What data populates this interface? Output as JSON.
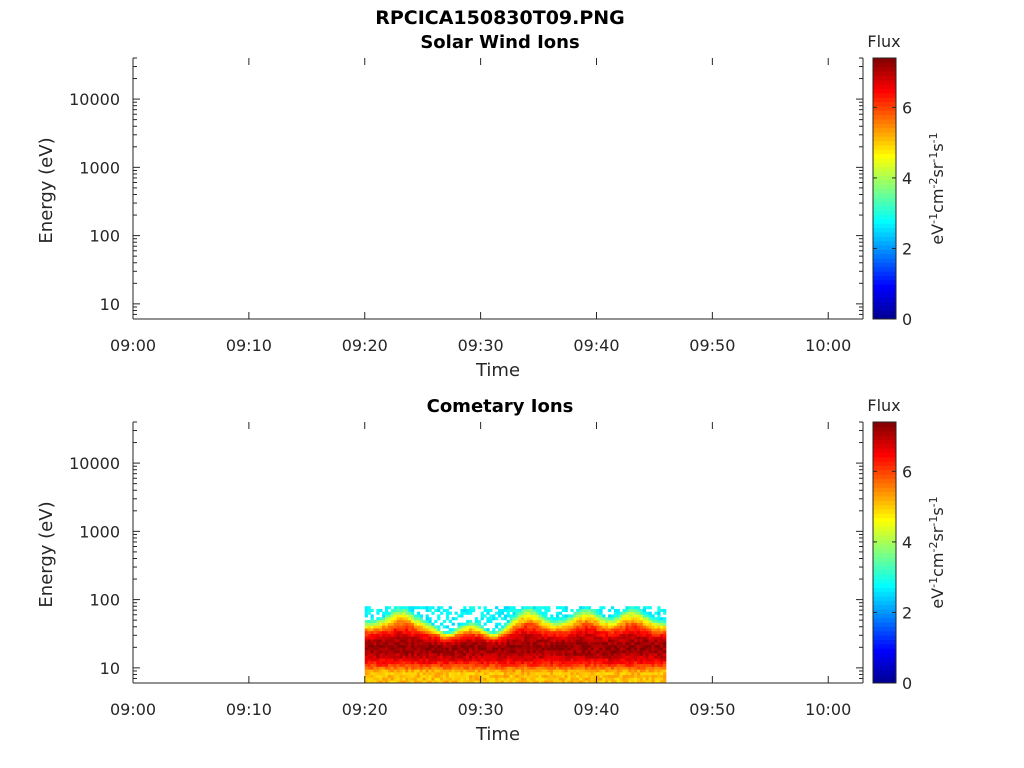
{
  "figure": {
    "title": "RPCICA150830T09.PNG"
  },
  "colors": {
    "colormap": [
      "#00008f",
      "#0000ff",
      "#0080ff",
      "#00ffff",
      "#80ff80",
      "#ffff00",
      "#ff8000",
      "#ff0000",
      "#800000"
    ]
  },
  "chart_data": [
    {
      "type": "heatmap",
      "title": "Solar Wind Ions",
      "xlabel": "Time",
      "ylabel": "Energy (eV)",
      "yscale": "log",
      "ylim": [
        6,
        40000
      ],
      "xlim": [
        "09:00",
        "10:03"
      ],
      "xticks": [
        "09:00",
        "09:10",
        "09:20",
        "09:30",
        "09:40",
        "09:50",
        "10:00"
      ],
      "yticks": [
        10,
        100,
        1000,
        10000
      ],
      "ytick_labels": [
        "10",
        "100",
        "1000",
        "10000"
      ],
      "colorbar": {
        "title": "Flux",
        "label": "eV-1cm-2sr-1s-1",
        "range": [
          0,
          7.4
        ],
        "ticks": [
          "0",
          "2",
          "4",
          "6"
        ]
      },
      "data": []
    },
    {
      "type": "heatmap",
      "title": "Cometary Ions",
      "xlabel": "Time",
      "ylabel": "Energy (eV)",
      "yscale": "log",
      "ylim": [
        6,
        40000
      ],
      "xlim": [
        "09:00",
        "10:03"
      ],
      "xticks": [
        "09:00",
        "09:10",
        "09:20",
        "09:30",
        "09:40",
        "09:50",
        "10:00"
      ],
      "yticks": [
        10,
        100,
        1000,
        10000
      ],
      "ytick_labels": [
        "10",
        "100",
        "1000",
        "10000"
      ],
      "colorbar": {
        "title": "Flux",
        "label": "eV-1cm-2sr-1s-1",
        "range": [
          0,
          7.4
        ],
        "ticks": [
          "0",
          "2",
          "4",
          "6"
        ]
      },
      "data_extent": {
        "time_start": "09:20",
        "time_end": "09:46",
        "energy_min": 6,
        "energy_max": 80
      },
      "flux_profile": {
        "peak_energy_eV": 20,
        "peak_flux": 7.2,
        "edge_flux": 2.5,
        "enhanced_upper_edge_times": [
          "09:23",
          "09:34",
          "09:39",
          "09:43"
        ],
        "depressed_upper_edge_times": [
          "09:27",
          "09:31"
        ]
      }
    }
  ]
}
